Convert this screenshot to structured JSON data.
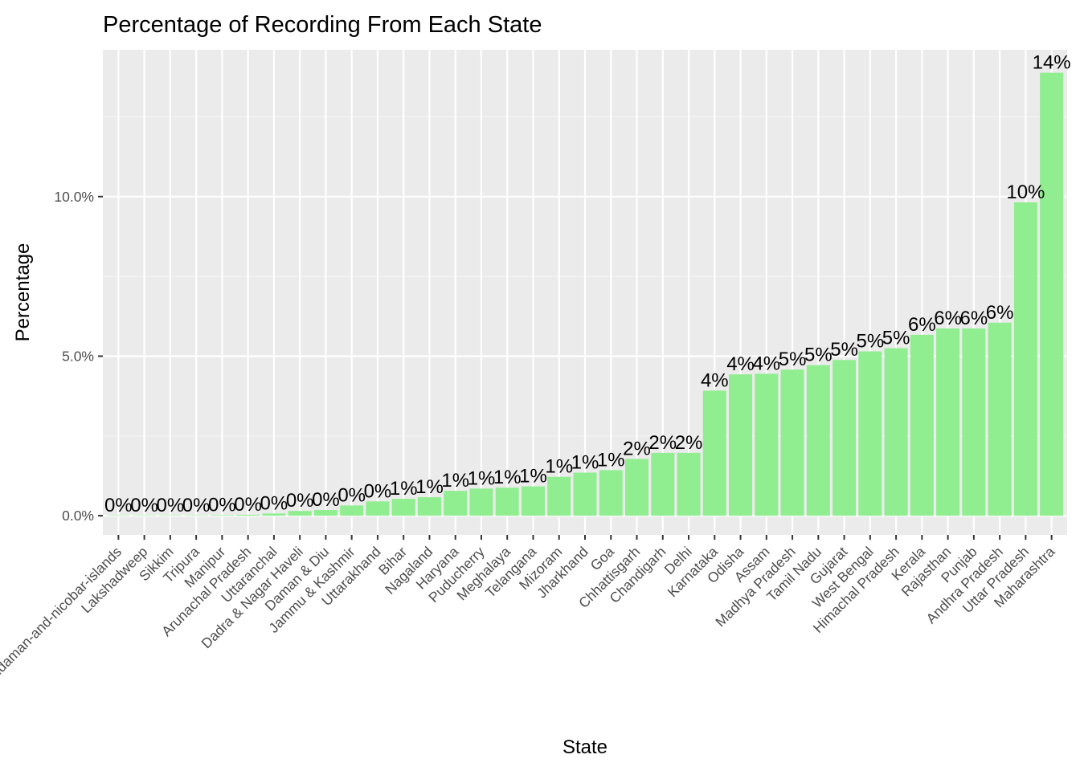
{
  "chart_data": {
    "type": "bar",
    "title": "Percentage of Recording From Each State",
    "xlabel": "State",
    "ylabel": "Percentage",
    "ylim": [
      -0.6,
      14.6
    ],
    "yticks": [
      0,
      5,
      10
    ],
    "ytick_labels": [
      "0.0%",
      "5.0%",
      "10.0%"
    ],
    "grid": true,
    "legend": "none",
    "categories": [
      "andaman-and-nicobar-islands",
      "Lakshadweep",
      "Sikkim",
      "Tripura",
      "Manipur",
      "Arunachal Pradesh",
      "Uttaranchal",
      "Dadra & Nagar Haveli",
      "Daman & Diu",
      "Jammu & Kashmir",
      "Uttarakhand",
      "Bihar",
      "Nagaland",
      "Haryana",
      "Puducherry",
      "Meghalaya",
      "Telangana",
      "Mizoram",
      "Jharkhand",
      "Goa",
      "Chhattisgarh",
      "Chandigarh",
      "Delhi",
      "Karnataka",
      "Odisha",
      "Assam",
      "Madhya Pradesh",
      "Tamil Nadu",
      "Gujarat",
      "West Bengal",
      "Himachal Pradesh",
      "Kerala",
      "Rajasthan",
      "Punjab",
      "Andhra Pradesh",
      "Uttar Pradesh",
      "Maharashtra"
    ],
    "values": [
      0.0,
      0.0,
      0.0,
      0.0,
      0.02,
      0.03,
      0.07,
      0.15,
      0.18,
      0.32,
      0.45,
      0.53,
      0.58,
      0.78,
      0.85,
      0.88,
      0.92,
      1.22,
      1.35,
      1.43,
      1.78,
      1.97,
      1.97,
      3.92,
      4.43,
      4.45,
      4.58,
      4.72,
      4.88,
      5.15,
      5.25,
      5.67,
      5.87,
      5.87,
      6.05,
      9.82,
      13.88
    ],
    "data_labels": [
      "0%",
      "0%",
      "0%",
      "0%",
      "0%",
      "0%",
      "0%",
      "0%",
      "0%",
      "0%",
      "0%",
      "1%",
      "1%",
      "1%",
      "1%",
      "1%",
      "1%",
      "1%",
      "1%",
      "1%",
      "2%",
      "2%",
      "2%",
      "4%",
      "4%",
      "4%",
      "5%",
      "5%",
      "5%",
      "5%",
      "5%",
      "6%",
      "6%",
      "6%",
      "6%",
      "10%",
      "14%"
    ],
    "colors": {
      "bar_fill": "#90ee90",
      "panel_background": "#ebebeb",
      "grid_major": "#ffffff",
      "grid_minor": "#f5f5f5",
      "tick_text": "#4d4d4d",
      "text": "#000000"
    }
  }
}
